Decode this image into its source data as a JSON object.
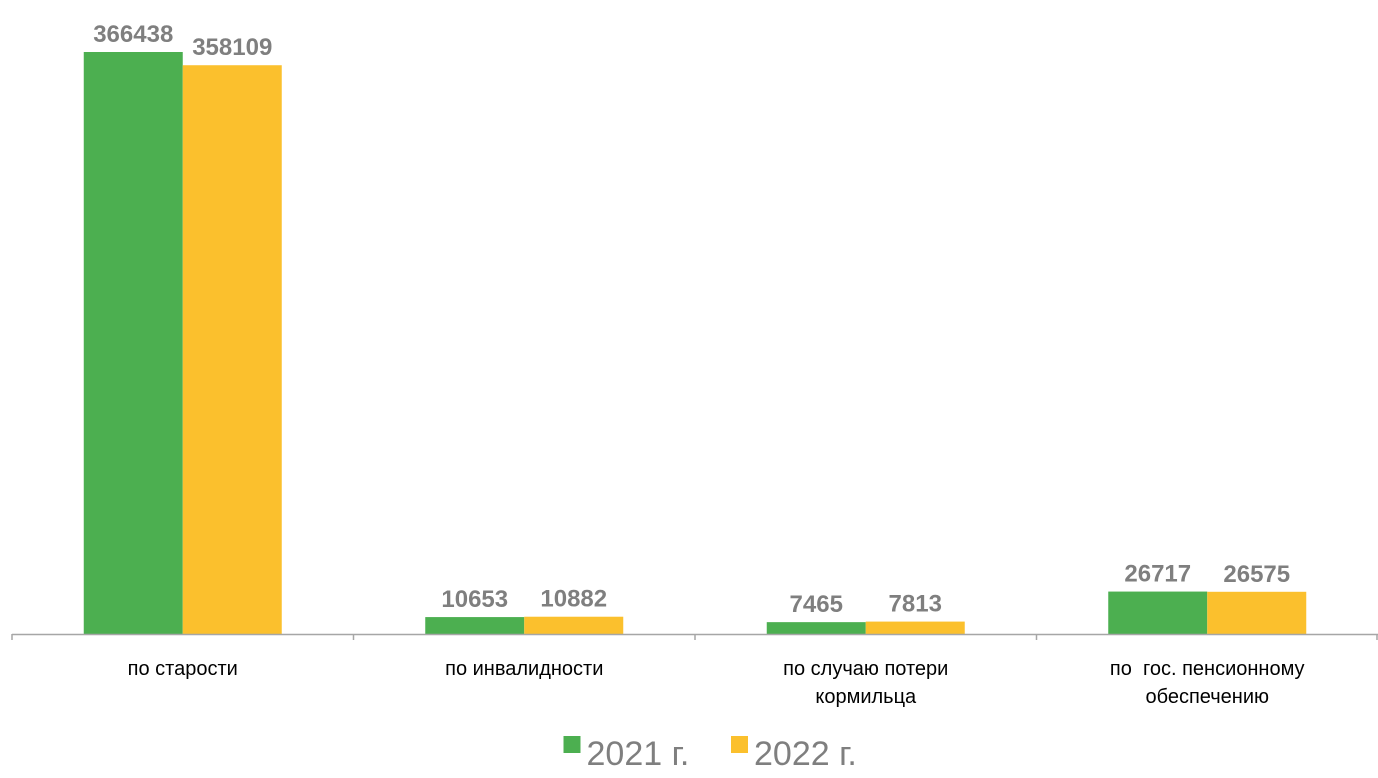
{
  "chart_data": {
    "type": "bar",
    "title": "",
    "xlabel": "",
    "ylabel": "",
    "categories": [
      [
        "по старости"
      ],
      [
        "по инвалидности"
      ],
      [
        "по случаю потери",
        "кормильца"
      ],
      [
        "по  гос. пенсионному",
        "обеспечению"
      ]
    ],
    "series": [
      {
        "name": "2021 г.",
        "color": "#4caf50",
        "values": [
          366438,
          10653,
          7465,
          26717
        ]
      },
      {
        "name": "2022 г.",
        "color": "#fbc02d",
        "values": [
          358109,
          10882,
          7813,
          26575
        ]
      }
    ],
    "ylim": [
      0,
      366438
    ],
    "grid": false,
    "legend": "bottom-center",
    "data_labels": true,
    "label_color": "#7f7f7f",
    "axis_color": "#a6a6a6"
  }
}
